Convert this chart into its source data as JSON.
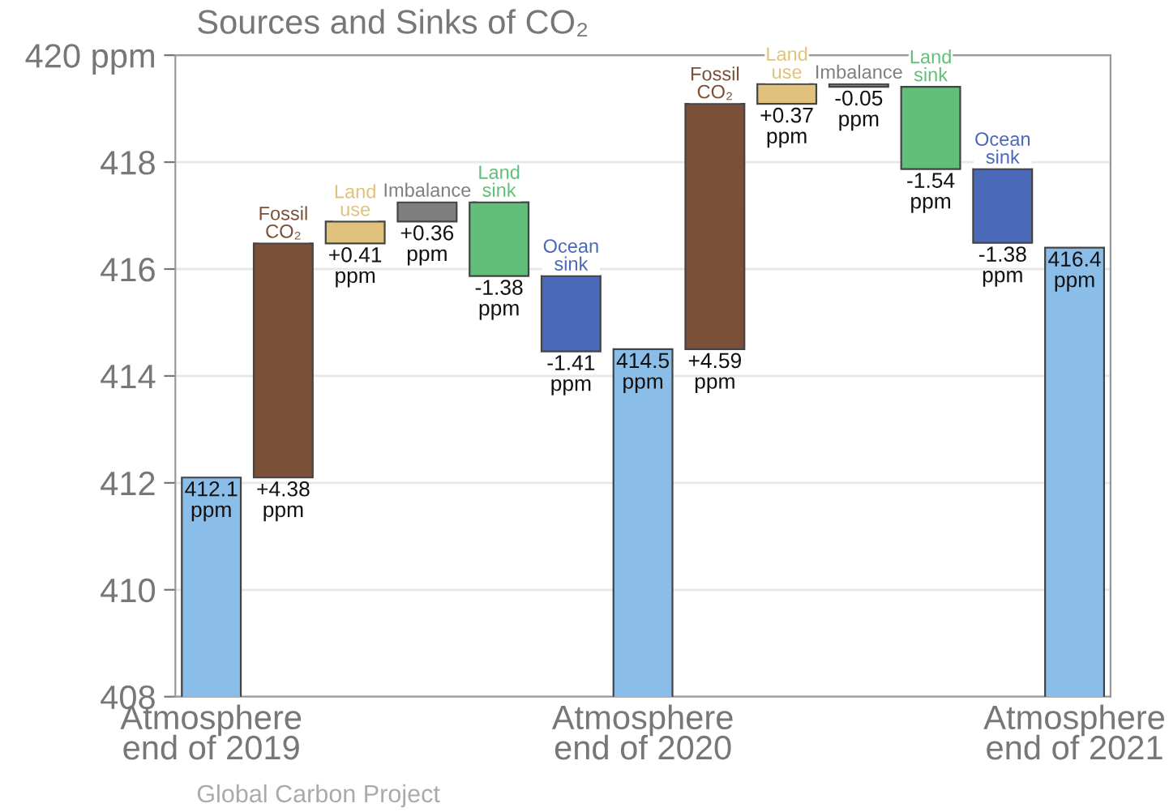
{
  "chart_data": {
    "type": "bar",
    "title": "Sources and Sinks of CO₂",
    "categories": [
      "Atmosphere\nend of 2019",
      null,
      null,
      null,
      null,
      null,
      "Atmosphere\nend of 2020",
      null,
      null,
      null,
      null,
      null,
      "Atmosphere\nend of 2021"
    ],
    "values": [
      412.1,
      4.38,
      0.41,
      0.36,
      -1.38,
      -1.41,
      414.5,
      4.59,
      0.37,
      -0.05,
      -1.54,
      -1.38,
      416.4
    ],
    "base": [
      null,
      412.1,
      416.48,
      416.89,
      417.25,
      415.87,
      null,
      414.5,
      419.09,
      419.46,
      419.41,
      417.87,
      null
    ],
    "colors": [
      "#8bbde9",
      "#7a5038",
      "#e0c27c",
      "#7f7f7f",
      "#62bf7a",
      "#4a69b9",
      "#8bbde9",
      "#7a5038",
      "#e0c27c",
      "#7f7f7f",
      "#62bf7a",
      "#4a69b9",
      "#8bbde9"
    ],
    "value_labels": [
      "412.1\nppm",
      "+4.38\nppm",
      "+0.41\nppm",
      "+0.36\nppm",
      "-1.38\nppm",
      "-1.41\nppm",
      "414.5\nppm",
      "+4.59\nppm",
      "+0.37\nppm",
      "-0.05\nppm",
      "-1.54\nppm",
      "-1.38\nppm",
      "416.4\nppm"
    ],
    "annotations": [
      "Fossil\nCO₂",
      "Land\nuse",
      "Imbalance",
      "Land\nsink",
      "Ocean\nsink",
      "Fossil\nCO₂",
      "Land\nuse",
      "Imbalance",
      "Land\nsink",
      "Ocean\nsink",
      "Global Carbon Project"
    ],
    "ylim": [
      408,
      420
    ],
    "yticks": [
      408,
      410,
      412,
      414,
      416,
      418,
      {
        "value": 420,
        "label": "420 ppm"
      }
    ],
    "grid": "y"
  }
}
